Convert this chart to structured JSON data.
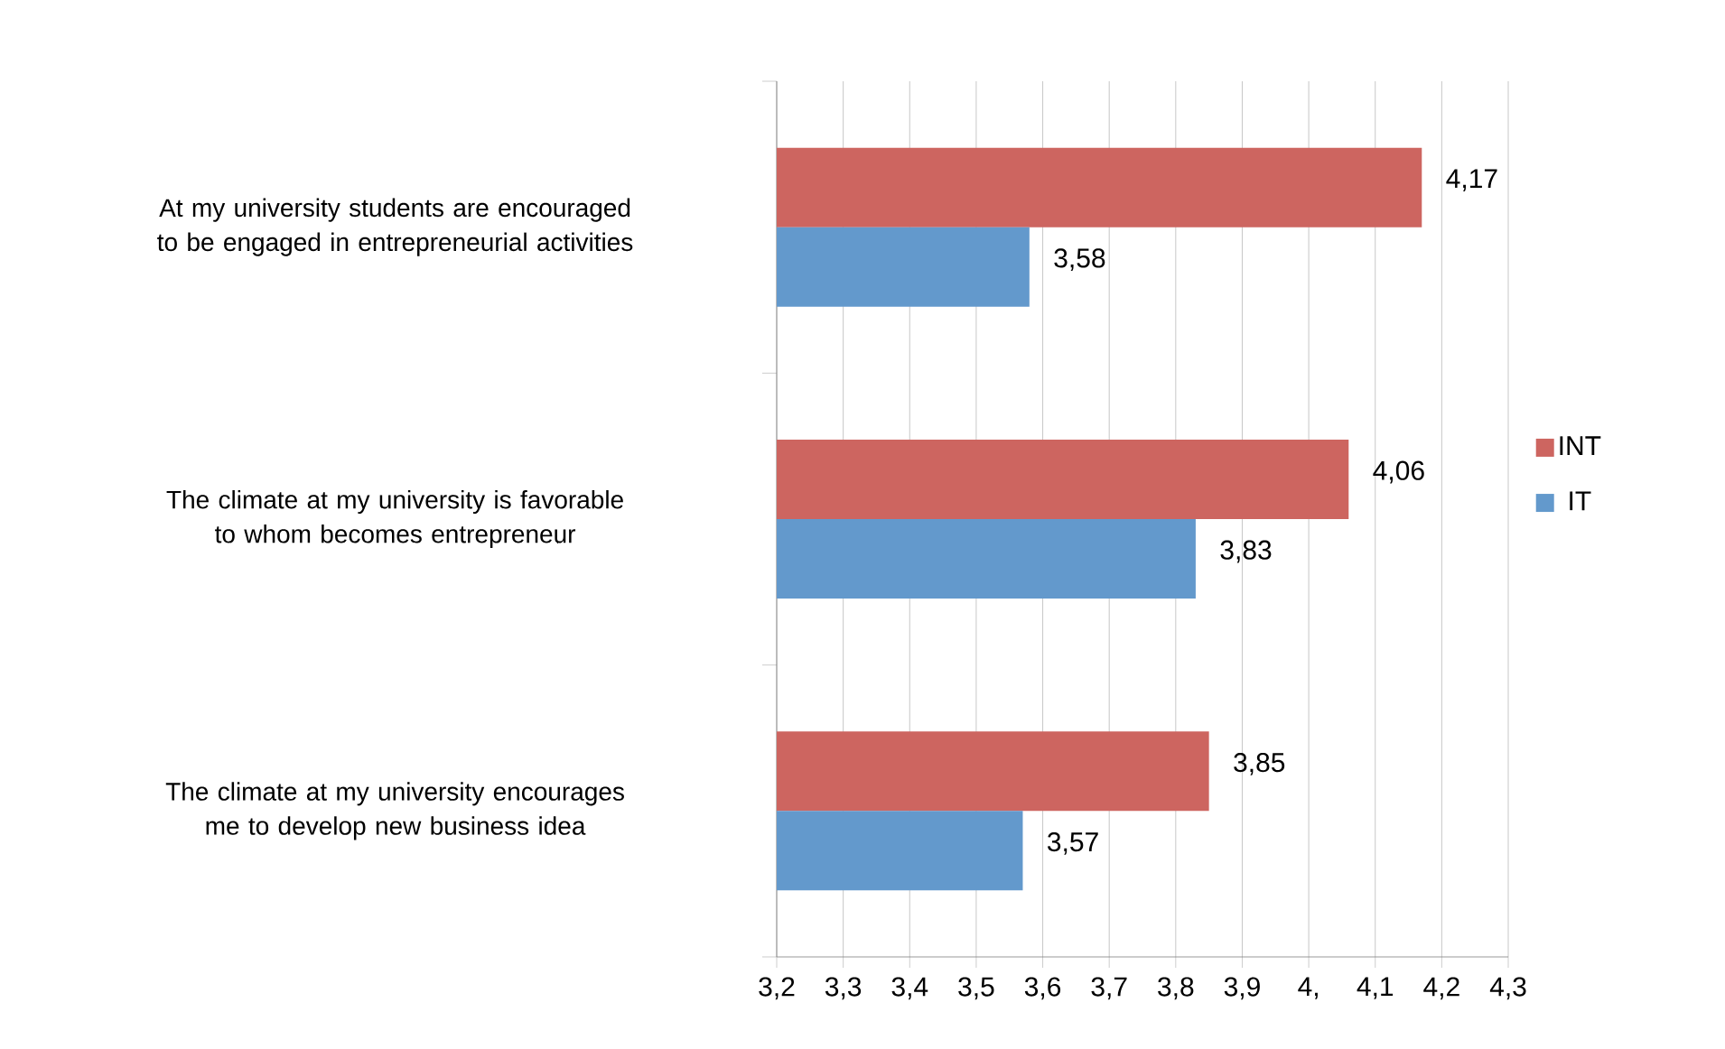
{
  "chart_data": {
    "type": "bar",
    "orientation": "horizontal",
    "categories": [
      "At my university students are encouraged to be engaged in entrepreneurial activities",
      "The climate at my university is favorable to whom becomes entrepreneur",
      "The climate at my university encourages me to develop new business idea"
    ],
    "series": [
      {
        "name": "INT",
        "color": "#cd6560",
        "values": [
          4.17,
          4.06,
          3.85
        ],
        "value_labels": [
          "4,17",
          "4,06",
          "3,85"
        ]
      },
      {
        "name": "IT",
        "color": "#6399cc",
        "values": [
          3.58,
          3.83,
          3.57
        ],
        "value_labels": [
          "3,58",
          "3,83",
          "3,57"
        ]
      }
    ],
    "xlim": [
      3.2,
      4.3
    ],
    "xticks": [
      {
        "value": 3.2,
        "label": "3,2"
      },
      {
        "value": 3.3,
        "label": "3,3"
      },
      {
        "value": 3.4,
        "label": "3,4"
      },
      {
        "value": 3.5,
        "label": "3,5"
      },
      {
        "value": 3.6,
        "label": "3,6"
      },
      {
        "value": 3.7,
        "label": "3,7"
      },
      {
        "value": 3.8,
        "label": "3,8"
      },
      {
        "value": 3.9,
        "label": "3,9"
      },
      {
        "value": 4.0,
        "label": "4,"
      },
      {
        "value": 4.1,
        "label": "4,1"
      },
      {
        "value": 4.2,
        "label": "4,2"
      },
      {
        "value": 4.3,
        "label": "4,3"
      }
    ],
    "grid": "x",
    "legend": "right"
  }
}
